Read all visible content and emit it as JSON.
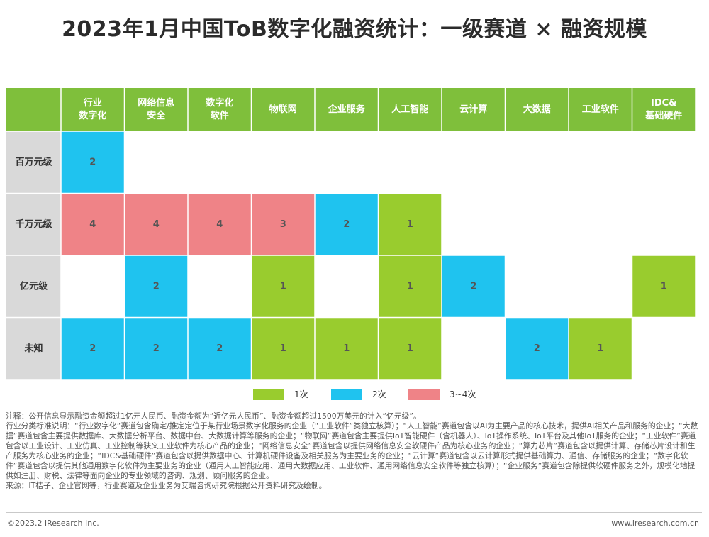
{
  "title": "2023年1月中国ToB数字化融资统计：一级赛道 × 融资规模",
  "colors": {
    "header_bg": "#7fbf3b",
    "row_header_bg": "#d9d9d9",
    "count_1": "#99cc2e",
    "count_2": "#1fc3ef",
    "count_3_4": "#ef8387",
    "grid_line": "#ffffff"
  },
  "chart_data": {
    "type": "heatmap",
    "columns": [
      [
        "行业",
        "数字化"
      ],
      [
        "网络信息",
        "安全"
      ],
      [
        "数字化",
        "软件"
      ],
      [
        "物联网"
      ],
      [
        "企业服务"
      ],
      [
        "人工智能"
      ],
      [
        "云计算"
      ],
      [
        "大数据"
      ],
      [
        "工业软件"
      ],
      [
        "IDC&",
        "基础硬件"
      ]
    ],
    "rows": [
      "百万元级",
      "千万元级",
      "亿元级",
      "未知"
    ],
    "values": [
      [
        2,
        null,
        null,
        null,
        null,
        null,
        null,
        null,
        null,
        null
      ],
      [
        4,
        4,
        4,
        3,
        2,
        1,
        null,
        null,
        null,
        null
      ],
      [
        null,
        2,
        null,
        1,
        null,
        1,
        2,
        null,
        null,
        1
      ],
      [
        2,
        2,
        2,
        1,
        1,
        1,
        null,
        2,
        1,
        null
      ]
    ],
    "legend": [
      {
        "label": "1次",
        "color": "#99cc2e"
      },
      {
        "label": "2次",
        "color": "#1fc3ef"
      },
      {
        "label": "3~4次",
        "color": "#ef8387"
      }
    ]
  },
  "notes": {
    "note1": "注释：公开信息显示融资金额超过1亿元人民币、融资金额为“近亿元人民币”、融资金额超过1500万美元的计入“亿元级”。",
    "note2": "行业分类标准说明：“行业数字化”赛道包含确定/推定定位于某行业场景数字化服务的企业（“工业软件”类独立核算）；“人工智能”赛道包含以AI为主要产品的核心技术，提供AI相关产品和服务的企业；“大数据”赛道包含主要提供数据库、大数据分析平台、数据中台、大数据计算等服务的企业；“物联网”赛道包含主要提供IoT智能硬件（含机器人）、IoT操作系统、IoT平台及其他IoT服务的企业；“工业软件”赛道包含以工业设计、工业仿真、工业控制等狭义工业软件为核心产品的企业；“网络信息安全”赛道包含以提供网络信息安全软硬件产品为核心业务的企业；“算力芯片”赛道包含以提供计算、存储芯片设计和生产服务为核心业务的企业；“IDC&基础硬件”赛道包含以提供数据中心、计算机硬件设备及相关服务为主要业务的企业；“云计算”赛道包含以云计算形式提供基础算力、通信、存储服务的企业；“数字化软件”赛道包含以提供其他通用数字化软件为主要业务的企业（通用人工智能应用、通用大数据应用、工业软件、通用网络信息安全软件等独立核算）；“企业服务”赛道包含除提供软硬件服务之外，规模化地提供如注册、财税、法律等面向企业的专业领域的咨询、规划、顾问服务的企业。",
    "source": "来源：IT桔子、企业官网等，行业赛道及企业业务为艾瑞咨询研究院根据公开资料研究及绘制。"
  },
  "footer": {
    "copyright": "©2023.2 iResearch Inc.",
    "website": "www.iresearch.com.cn"
  }
}
